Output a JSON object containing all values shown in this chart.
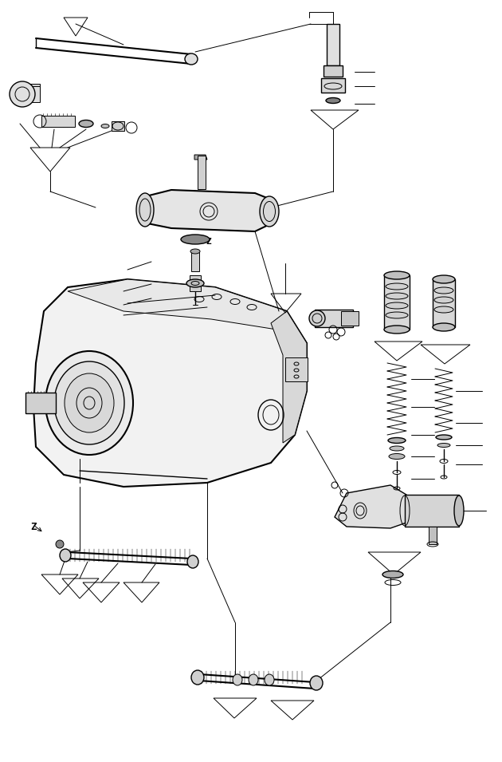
{
  "bg_color": "#ffffff",
  "line_color": "#000000",
  "figsize": [
    6.3,
    9.55
  ],
  "dpi": 100,
  "lw_thin": 0.7,
  "lw_med": 1.0,
  "lw_thick": 1.5
}
